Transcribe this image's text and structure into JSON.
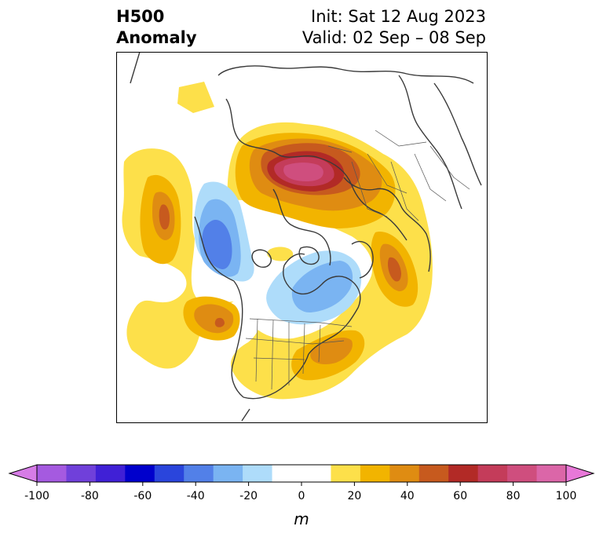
{
  "title": {
    "left_line1": "H500",
    "left_line2": "Anomaly",
    "right_line1": "Init: Sat 12 Aug 2023",
    "right_line2": "Valid: 02 Sep – 08 Sep"
  },
  "colorbar": {
    "unit": "m",
    "ticks": [
      "-100",
      "-80",
      "-60",
      "-40",
      "-20",
      "0",
      "20",
      "40",
      "60",
      "80",
      "100"
    ],
    "colors": [
      "#d67ce6",
      "#a55ae0",
      "#7040da",
      "#4020d6",
      "#0000cc",
      "#2a45dc",
      "#5280e8",
      "#7ab4f2",
      "#aedcfa",
      "#ffffff",
      "#ffffff",
      "#fde04a",
      "#f2b400",
      "#df8c12",
      "#c75a1e",
      "#b22a26",
      "#c43c5a",
      "#cf4e7e",
      "#db66a8",
      "#e878d8"
    ],
    "range": [
      -100,
      100
    ],
    "extend": "both"
  },
  "map": {
    "projection": "polar-stereographic",
    "region": "Northern Hemisphere",
    "variable": "500 hPa geopotential height anomaly"
  }
}
